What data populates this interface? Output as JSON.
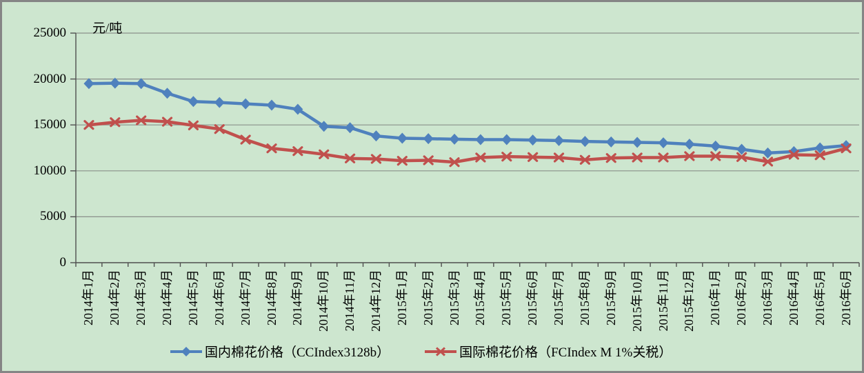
{
  "chart_data": {
    "type": "line",
    "title": "",
    "ylabel": "元/吨",
    "xlabel": "",
    "ylim": [
      0,
      25000
    ],
    "yticks": [
      0,
      5000,
      10000,
      15000,
      20000,
      25000
    ],
    "grid": true,
    "legend_position": "bottom",
    "categories": [
      "2014年1月",
      "2014年2月",
      "2014年3月",
      "2014年4月",
      "2014年5月",
      "2014年6月",
      "2014年7月",
      "2014年8月",
      "2014年9月",
      "2014年10月",
      "2014年11月",
      "2014年12月",
      "2015年1月",
      "2015年2月",
      "2015年3月",
      "2015年4月",
      "2015年5月",
      "2015年6月",
      "2015年7月",
      "2015年8月",
      "2015年9月",
      "2015年10月",
      "2015年11月",
      "2015年12月",
      "2016年1月",
      "2016年2月",
      "2016年3月",
      "2016年4月",
      "2016年5月",
      "2016年6月"
    ],
    "series": [
      {
        "id": "domestic",
        "name": "国内棉花价格（CCIndex3128b）",
        "color": "#4F81BD",
        "marker": "diamond",
        "values": [
          19500,
          19550,
          19500,
          18450,
          17550,
          17450,
          17300,
          17150,
          16700,
          14850,
          14700,
          13800,
          13550,
          13500,
          13450,
          13400,
          13400,
          13350,
          13300,
          13200,
          13150,
          13100,
          13050,
          12900,
          12700,
          12350,
          11950,
          12100,
          12500,
          12750
        ]
      },
      {
        "id": "international",
        "name": "国际棉花价格（FCIndex M 1%关税）",
        "color": "#C0504D",
        "marker": "x",
        "values": [
          15000,
          15300,
          15500,
          15350,
          14950,
          14550,
          13400,
          12450,
          12150,
          11800,
          11350,
          11300,
          11100,
          11150,
          10950,
          11450,
          11550,
          11500,
          11450,
          11200,
          11400,
          11450,
          11450,
          11600,
          11600,
          11500,
          11000,
          11750,
          11700,
          12450
        ]
      }
    ],
    "colors": {
      "background": "#cde6cf",
      "gridline": "#8a8f8a",
      "axis": "#4f4f4f",
      "text": "#000000",
      "frame_border": "#858585"
    }
  }
}
